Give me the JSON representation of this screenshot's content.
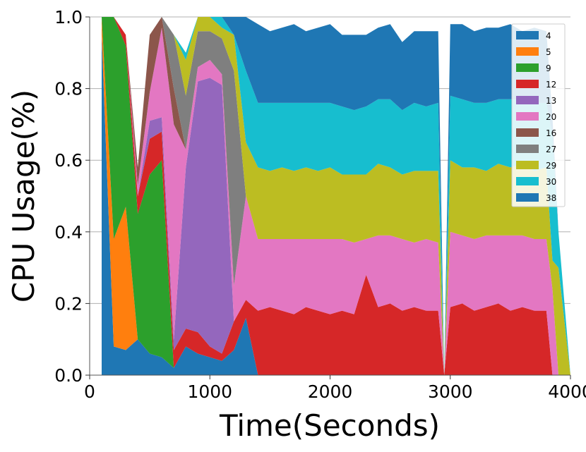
{
  "chart_data": {
    "type": "area",
    "xlabel": "Time(Seconds)",
    "ylabel": "CPU Usage(%)",
    "xlim": [
      0,
      4000
    ],
    "ylim": [
      0,
      1.0
    ],
    "x_ticks": [
      "0",
      "1000",
      "2000",
      "3000",
      "4000"
    ],
    "y_ticks": [
      "0.0",
      "0.2",
      "0.4",
      "0.6",
      "0.8",
      "1.0"
    ],
    "grid": "horizontal",
    "legend_position": "top-right",
    "x": [
      100,
      200,
      300,
      400,
      500,
      600,
      700,
      800,
      900,
      1000,
      1100,
      1200,
      1300,
      1400,
      1500,
      1600,
      1700,
      1800,
      1900,
      2000,
      2100,
      2200,
      2300,
      2400,
      2500,
      2600,
      2700,
      2800,
      2900,
      2950,
      3000,
      3100,
      3200,
      3300,
      3400,
      3500,
      3600,
      3700,
      3800,
      3850,
      3900,
      4000
    ],
    "series": [
      {
        "name": "4",
        "color": "#1f77b4",
        "values": [
          0.95,
          0.08,
          0.07,
          0.1,
          0.06,
          0.05,
          0.02,
          0.08,
          0.06,
          0.05,
          0.04,
          0.07,
          0.16,
          0,
          0,
          0,
          0,
          0,
          0,
          0,
          0,
          0,
          0,
          0,
          0,
          0,
          0,
          0,
          0,
          0,
          0,
          0,
          0,
          0,
          0,
          0,
          0,
          0,
          0,
          0,
          0,
          0
        ]
      },
      {
        "name": "5",
        "color": "#ff7f0e",
        "values": [
          0.05,
          0.3,
          0.4,
          0,
          0,
          0,
          0,
          0,
          0,
          0,
          0,
          0,
          0,
          0,
          0,
          0,
          0,
          0,
          0,
          0,
          0,
          0,
          0,
          0,
          0,
          0,
          0,
          0,
          0,
          0,
          0,
          0,
          0,
          0,
          0,
          0,
          0,
          0,
          0,
          0,
          0,
          0
        ]
      },
      {
        "name": "9",
        "color": "#2ca02c",
        "values": [
          0,
          0.62,
          0.45,
          0.35,
          0.5,
          0.55,
          0,
          0,
          0,
          0,
          0,
          0,
          0,
          0,
          0,
          0,
          0,
          0,
          0,
          0,
          0,
          0,
          0,
          0,
          0,
          0,
          0,
          0,
          0,
          0,
          0,
          0,
          0,
          0,
          0,
          0,
          0,
          0,
          0,
          0,
          0,
          0
        ]
      },
      {
        "name": "12",
        "color": "#d62728",
        "values": [
          0,
          0,
          0.03,
          0.05,
          0.1,
          0.08,
          0.05,
          0.05,
          0.06,
          0.03,
          0.02,
          0.08,
          0.05,
          0.18,
          0.19,
          0.18,
          0.17,
          0.19,
          0.18,
          0.17,
          0.18,
          0.17,
          0.28,
          0.19,
          0.2,
          0.18,
          0.19,
          0.18,
          0.18,
          0,
          0.19,
          0.2,
          0.18,
          0.19,
          0.2,
          0.18,
          0.19,
          0.18,
          0.18,
          0,
          0,
          0
        ]
      },
      {
        "name": "13",
        "color": "#9467bd",
        "values": [
          0,
          0,
          0,
          0,
          0.05,
          0.04,
          0.03,
          0.45,
          0.7,
          0.75,
          0.75,
          0,
          0,
          0,
          0,
          0,
          0,
          0,
          0,
          0,
          0,
          0,
          0,
          0,
          0,
          0,
          0,
          0,
          0,
          0,
          0,
          0,
          0,
          0,
          0,
          0,
          0,
          0,
          0,
          0,
          0,
          0
        ]
      },
      {
        "name": "20",
        "color": "#e377c2",
        "values": [
          0,
          0,
          0,
          0.03,
          0.08,
          0.25,
          0.6,
          0.05,
          0.04,
          0.05,
          0.03,
          0.1,
          0.29,
          0.2,
          0.19,
          0.2,
          0.21,
          0.19,
          0.2,
          0.21,
          0.2,
          0.2,
          0.1,
          0.2,
          0.19,
          0.2,
          0.18,
          0.2,
          0.19,
          0,
          0.21,
          0.19,
          0.2,
          0.2,
          0.19,
          0.21,
          0.2,
          0.2,
          0.2,
          0.24,
          0,
          0
        ]
      },
      {
        "name": "16",
        "color": "#8c564b",
        "values": [
          0,
          0,
          0,
          0.05,
          0.16,
          0.08,
          0.1,
          0,
          0,
          0,
          0,
          0,
          0,
          0,
          0,
          0,
          0,
          0,
          0,
          0,
          0,
          0,
          0,
          0,
          0,
          0,
          0,
          0,
          0,
          0,
          0,
          0,
          0,
          0,
          0,
          0,
          0,
          0,
          0,
          0,
          0,
          0
        ]
      },
      {
        "name": "27",
        "color": "#7f7f7f",
        "values": [
          0,
          0,
          0,
          0,
          0,
          0,
          0.15,
          0.15,
          0.1,
          0.08,
          0.1,
          0.6,
          0,
          0,
          0,
          0,
          0,
          0,
          0,
          0,
          0,
          0,
          0,
          0,
          0,
          0,
          0,
          0,
          0,
          0,
          0,
          0,
          0,
          0,
          0,
          0,
          0,
          0,
          0,
          0,
          0,
          0
        ]
      },
      {
        "name": "29",
        "color": "#bcbd22",
        "values": [
          0,
          0,
          0,
          0,
          0,
          0,
          0,
          0.1,
          0.05,
          0.04,
          0.03,
          0.1,
          0.15,
          0.2,
          0.19,
          0.2,
          0.19,
          0.2,
          0.19,
          0.2,
          0.18,
          0.19,
          0.18,
          0.2,
          0.19,
          0.18,
          0.2,
          0.19,
          0.2,
          0,
          0.2,
          0.19,
          0.2,
          0.18,
          0.2,
          0.19,
          0.2,
          0.19,
          0.2,
          0.08,
          0.3,
          0
        ]
      },
      {
        "name": "30",
        "color": "#17becf",
        "values": [
          0,
          0,
          0,
          0,
          0,
          0,
          0,
          0.02,
          0.02,
          0.02,
          0.03,
          0,
          0.2,
          0.18,
          0.19,
          0.18,
          0.19,
          0.18,
          0.19,
          0.18,
          0.19,
          0.18,
          0.19,
          0.18,
          0.19,
          0.18,
          0.19,
          0.18,
          0.19,
          0,
          0.18,
          0.19,
          0.18,
          0.19,
          0.18,
          0.19,
          0.18,
          0.19,
          0.18,
          0.35,
          0.1,
          0
        ]
      },
      {
        "name": "38",
        "color": "#1f77b4",
        "values": [
          0,
          0,
          0,
          0,
          0,
          0,
          0,
          0,
          0,
          0,
          0,
          0.05,
          0.15,
          0.22,
          0.2,
          0.21,
          0.22,
          0.2,
          0.21,
          0.22,
          0.2,
          0.21,
          0.2,
          0.2,
          0.21,
          0.19,
          0.2,
          0.21,
          0.2,
          0,
          0.2,
          0.21,
          0.2,
          0.21,
          0.2,
          0.21,
          0.19,
          0.21,
          0.2,
          0.05,
          0,
          0
        ]
      }
    ]
  }
}
